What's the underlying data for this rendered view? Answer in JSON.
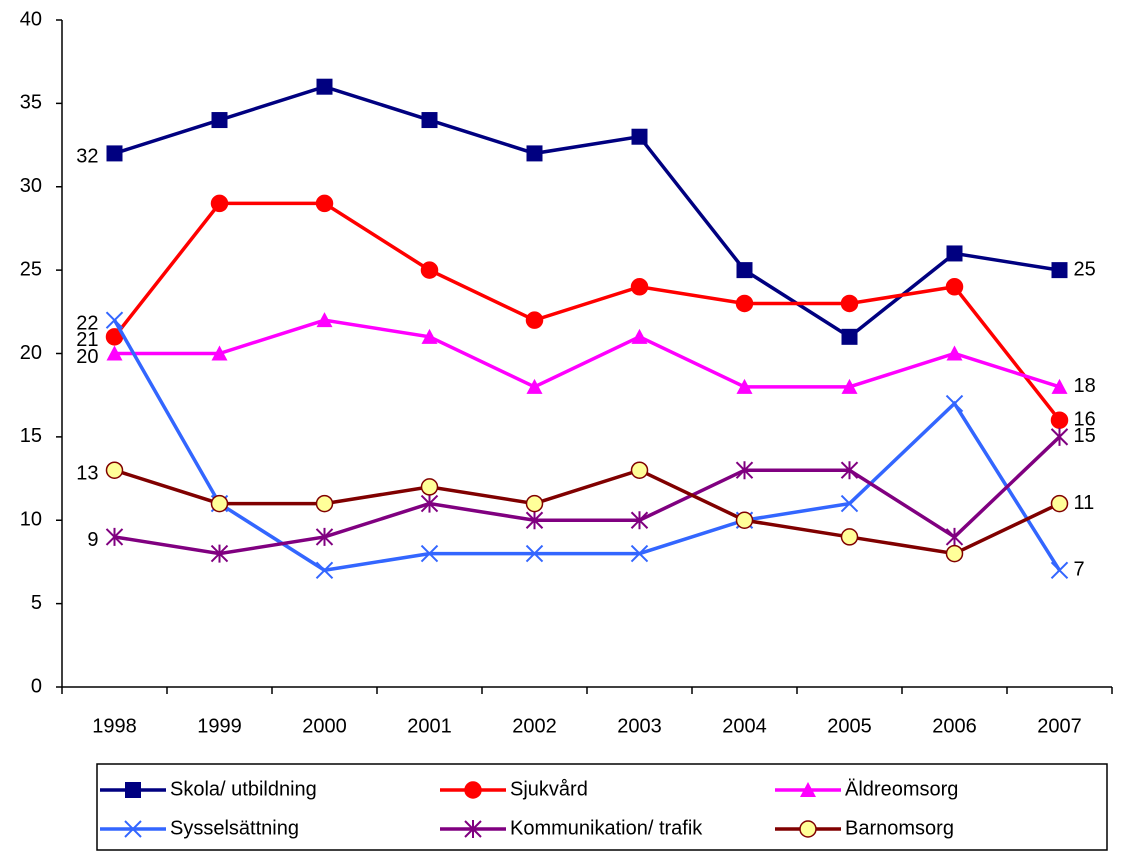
{
  "chart_data": {
    "type": "line",
    "categories": [
      "1998",
      "1999",
      "2000",
      "2001",
      "2002",
      "2003",
      "2004",
      "2005",
      "2006",
      "2007"
    ],
    "series": [
      {
        "name": "Skola/ utbildning",
        "color": "#000080",
        "marker": "square",
        "values": [
          32,
          34,
          36,
          34,
          32,
          33,
          25,
          21,
          26,
          25
        ]
      },
      {
        "name": "Sjukvård",
        "color": "#ff0000",
        "marker": "circle",
        "values": [
          21,
          29,
          29,
          25,
          22,
          24,
          23,
          23,
          24,
          16
        ]
      },
      {
        "name": "Äldreomsorg",
        "color": "#ff00ff",
        "marker": "triangle",
        "values": [
          20,
          20,
          22,
          21,
          18,
          21,
          18,
          18,
          20,
          18
        ]
      },
      {
        "name": "Sysselsättning",
        "color": "#3366ff",
        "marker": "x",
        "values": [
          22,
          11,
          7,
          8,
          8,
          8,
          10,
          11,
          17,
          7
        ]
      },
      {
        "name": "Kommunikation/ trafik",
        "color": "#800080",
        "marker": "asterisk",
        "values": [
          9,
          8,
          9,
          11,
          10,
          10,
          13,
          13,
          9,
          15
        ]
      },
      {
        "name": "Barnomsorg",
        "color": "#800000",
        "marker": "circle",
        "marker_fill": "#ffff99",
        "values": [
          13,
          11,
          11,
          12,
          11,
          13,
          10,
          9,
          8,
          11
        ]
      }
    ],
    "ylim": [
      0,
      40
    ],
    "yticks": [
      0,
      5,
      10,
      15,
      20,
      25,
      30,
      35,
      40
    ],
    "grid": false,
    "legend": "bottom"
  }
}
